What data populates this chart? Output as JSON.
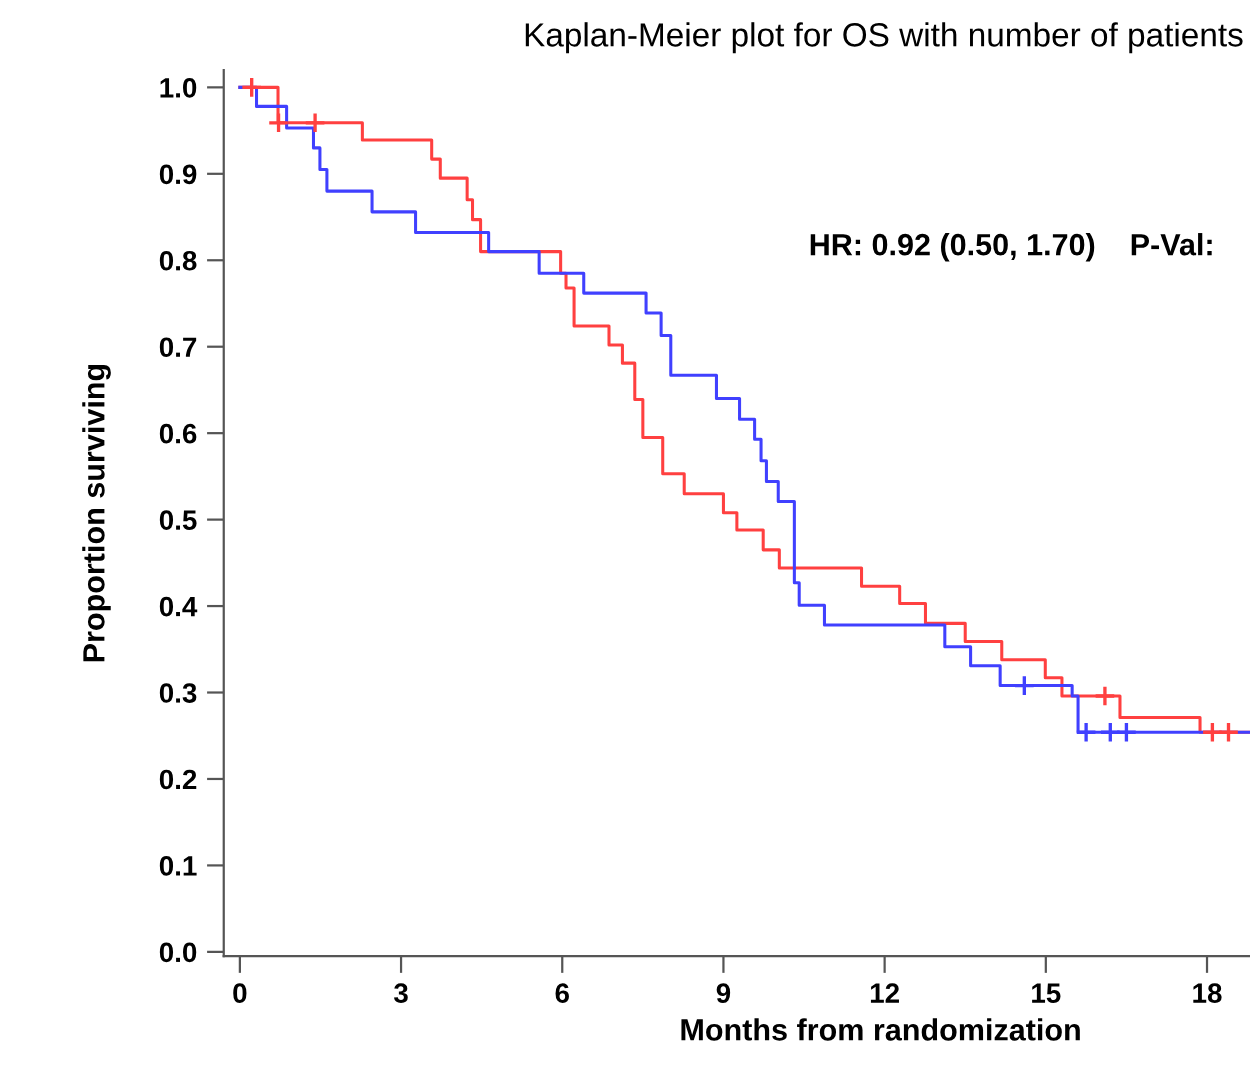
{
  "chart_data": {
    "type": "step",
    "title": "Kaplan-Meier plot for OS with number of patients",
    "xlabel": "Months from randomization",
    "ylabel": "Proportion surviving",
    "annotations": [
      "HR: 0.92 (0.50, 1.70)    P-Val:"
    ],
    "series": [
      {
        "color": "#ff4040",
        "x": [
          0,
          0.71,
          2.28,
          3.57,
          3.73,
          4.23,
          4.33,
          4.48,
          5.97,
          6.07,
          6.22,
          6.87,
          7.12,
          7.35,
          7.5,
          7.87,
          8.27,
          9.0,
          9.25,
          9.74,
          10.04,
          11.57,
          12.28,
          12.76,
          13.5,
          14.18,
          14.99,
          15.3,
          16.38,
          17.87,
          18.8
        ],
        "values": [
          1.0,
          0.959,
          0.939,
          0.917,
          0.895,
          0.87,
          0.847,
          0.81,
          0.785,
          0.768,
          0.724,
          0.702,
          0.681,
          0.639,
          0.595,
          0.553,
          0.53,
          0.508,
          0.488,
          0.465,
          0.444,
          0.423,
          0.403,
          0.38,
          0.359,
          0.338,
          0.317,
          0.296,
          0.271,
          0.254,
          0.254
        ]
      },
      {
        "color": "#4040ff",
        "x": [
          0,
          0.31,
          0.87,
          1.37,
          1.49,
          1.62,
          2.46,
          3.27,
          4.63,
          5.57,
          6.4,
          7.56,
          7.84,
          8.02,
          8.87,
          9.3,
          9.58,
          9.7,
          9.8,
          10.02,
          10.32,
          10.41,
          10.88,
          13.12,
          13.6,
          14.15,
          15.49,
          15.6,
          18.8
        ],
        "values": [
          1.0,
          0.978,
          0.953,
          0.93,
          0.905,
          0.88,
          0.856,
          0.832,
          0.81,
          0.785,
          0.762,
          0.739,
          0.713,
          0.667,
          0.64,
          0.616,
          0.593,
          0.568,
          0.544,
          0.521,
          0.427,
          0.401,
          0.378,
          0.353,
          0.331,
          0.308,
          0.296,
          0.254,
          0.254
        ]
      },
      {
        "type": "scatter",
        "color": "#ff4040",
        "marker": "cross",
        "x": [
          0.22,
          0.72,
          1.4,
          16.1,
          18.1,
          18.4
        ],
        "values": [
          1.0,
          0.959,
          0.959,
          0.296,
          0.254,
          0.254
        ]
      },
      {
        "type": "scatter",
        "color": "#4040ff",
        "marker": "cross",
        "x": [
          14.6,
          15.75,
          16.2,
          16.5
        ],
        "values": [
          0.308,
          0.254,
          0.254,
          0.254
        ]
      }
    ],
    "xlim": [
      -0.3,
      18.8
    ],
    "ylim": [
      -0.005,
      1.02
    ],
    "xticks": [
      0,
      3,
      6,
      9,
      12,
      15,
      18
    ],
    "yticks": [
      {
        "value": 0,
        "label": "0.0"
      },
      0.1,
      0.2,
      0.3,
      0.4,
      0.5,
      0.6,
      0.7,
      0.8,
      0.9,
      {
        "value": 1,
        "label": "1.0"
      }
    ],
    "grid": false,
    "legend": false
  }
}
